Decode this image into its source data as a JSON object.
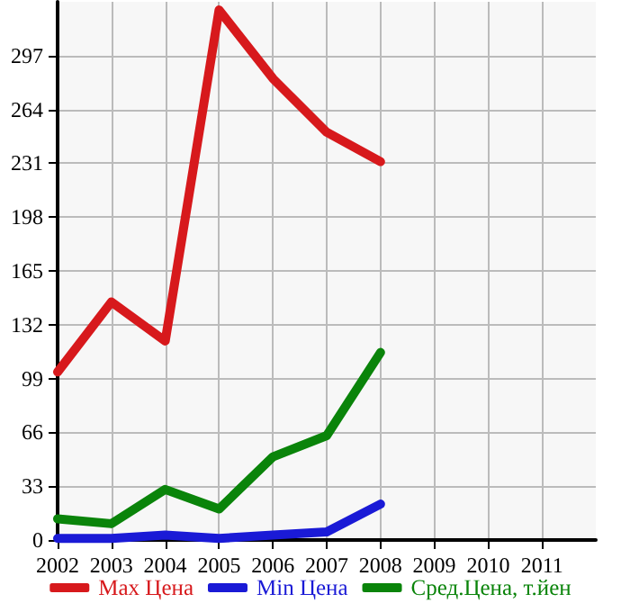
{
  "chart_data": {
    "type": "line",
    "x": [
      2002,
      2003,
      2004,
      2005,
      2006,
      2007,
      2008
    ],
    "series": [
      {
        "name": "Max Цена",
        "color": "#d7191c",
        "values": [
          103,
          146,
          122,
          325,
          283,
          250,
          232
        ]
      },
      {
        "name": "Min Цена",
        "color": "#1a1ad6",
        "values": [
          1,
          1,
          3,
          1,
          3,
          5,
          22
        ]
      },
      {
        "name": "Сред.Цена, т.йен",
        "color": "#0a840a",
        "values": [
          13,
          10,
          31,
          19,
          51,
          64,
          115
        ]
      }
    ],
    "xlim": [
      2002,
      2012
    ],
    "xticks": [
      2002,
      2003,
      2004,
      2005,
      2006,
      2007,
      2008,
      2009,
      2010,
      2011
    ],
    "ylim": [
      0,
      330
    ],
    "yticks": [
      0,
      33,
      66,
      99,
      132,
      165,
      198,
      231,
      264,
      297
    ],
    "grid": true,
    "legend": "bottom",
    "marker": "none",
    "line_style": "solid"
  }
}
